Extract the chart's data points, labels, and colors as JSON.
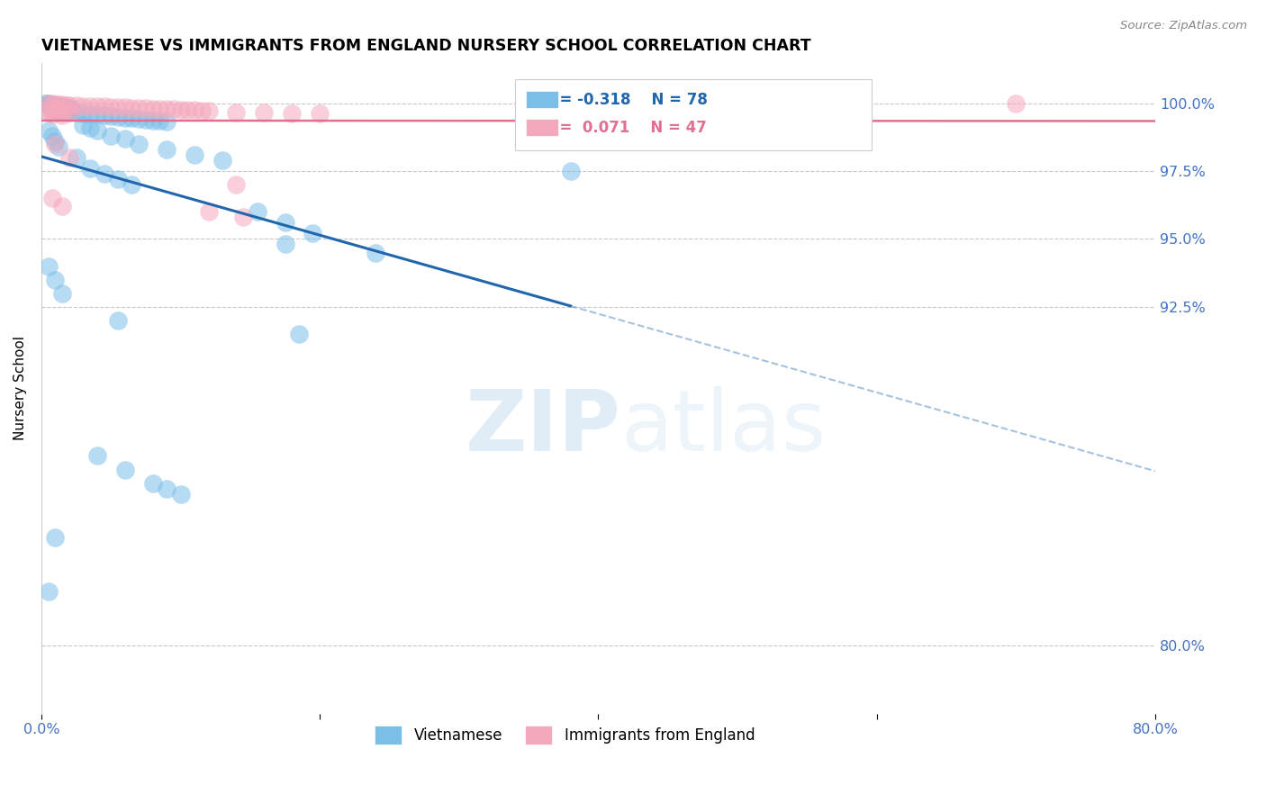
{
  "title": "VIETNAMESE VS IMMIGRANTS FROM ENGLAND NURSERY SCHOOL CORRELATION CHART",
  "source": "Source: ZipAtlas.com",
  "ylabel": "Nursery School",
  "ytick_labels": [
    "80.0%",
    "92.5%",
    "95.0%",
    "97.5%",
    "100.0%"
  ],
  "ytick_values": [
    0.8,
    0.925,
    0.95,
    0.975,
    1.0
  ],
  "xlim": [
    0.0,
    0.8
  ],
  "ylim": [
    0.775,
    1.015
  ],
  "blue_color": "#7bbee8",
  "pink_color": "#f4a8bc",
  "blue_line_color": "#2166ac",
  "pink_line_color": "#e07090",
  "legend_r_blue": "-0.318",
  "legend_n_blue": "78",
  "legend_r_pink": "0.071",
  "legend_n_pink": "47",
  "watermark_zip": "ZIP",
  "watermark_atlas": "atlas",
  "blue_scatter_x": [
    0.003,
    0.004,
    0.005,
    0.006,
    0.007,
    0.008,
    0.009,
    0.01,
    0.011,
    0.012,
    0.013,
    0.014,
    0.015,
    0.016,
    0.017,
    0.018,
    0.019,
    0.02,
    0.021,
    0.022,
    0.008,
    0.01,
    0.012,
    0.015,
    0.018,
    0.02,
    0.025,
    0.03,
    0.035,
    0.04,
    0.045,
    0.05,
    0.055,
    0.06,
    0.065,
    0.07,
    0.075,
    0.08,
    0.085,
    0.09,
    0.03,
    0.035,
    0.04,
    0.05,
    0.06,
    0.07,
    0.09,
    0.11,
    0.13,
    0.025,
    0.035,
    0.045,
    0.055,
    0.065,
    0.155,
    0.175,
    0.195,
    0.005,
    0.008,
    0.01,
    0.012,
    0.38,
    0.005,
    0.01,
    0.015,
    0.175,
    0.24,
    0.055,
    0.185,
    0.04,
    0.06,
    0.08,
    0.09,
    0.1,
    0.005,
    0.01
  ],
  "blue_scatter_y": [
    1.0,
    0.9998,
    0.9997,
    0.9996,
    0.9995,
    0.9994,
    0.9993,
    0.9992,
    0.9991,
    0.999,
    0.9989,
    0.9988,
    0.9987,
    0.9986,
    0.9985,
    0.9984,
    0.9983,
    0.9982,
    0.9981,
    0.998,
    0.9978,
    0.9976,
    0.9974,
    0.9972,
    0.997,
    0.9968,
    0.9965,
    0.9962,
    0.996,
    0.9958,
    0.9955,
    0.9952,
    0.995,
    0.9948,
    0.9945,
    0.9942,
    0.994,
    0.9938,
    0.9935,
    0.9932,
    0.992,
    0.991,
    0.99,
    0.988,
    0.987,
    0.985,
    0.983,
    0.981,
    0.979,
    0.98,
    0.976,
    0.974,
    0.972,
    0.97,
    0.96,
    0.956,
    0.952,
    0.99,
    0.988,
    0.986,
    0.984,
    0.975,
    0.94,
    0.935,
    0.93,
    0.948,
    0.945,
    0.92,
    0.915,
    0.87,
    0.865,
    0.86,
    0.858,
    0.856,
    0.82,
    0.84
  ],
  "pink_scatter_x": [
    0.005,
    0.008,
    0.01,
    0.012,
    0.015,
    0.018,
    0.02,
    0.025,
    0.03,
    0.035,
    0.04,
    0.045,
    0.05,
    0.055,
    0.06,
    0.065,
    0.07,
    0.075,
    0.08,
    0.085,
    0.09,
    0.095,
    0.1,
    0.105,
    0.11,
    0.115,
    0.12,
    0.003,
    0.006,
    0.009,
    0.012,
    0.015,
    0.02,
    0.14,
    0.16,
    0.18,
    0.2,
    0.008,
    0.015,
    0.14,
    0.01,
    0.7,
    0.02,
    0.008,
    0.015,
    0.12,
    0.145
  ],
  "pink_scatter_y": [
    1.0,
    0.9998,
    0.9997,
    0.9996,
    0.9995,
    0.9994,
    0.9993,
    0.9992,
    0.9991,
    0.999,
    0.9989,
    0.9988,
    0.9987,
    0.9986,
    0.9985,
    0.9984,
    0.9983,
    0.9982,
    0.9981,
    0.998,
    0.9979,
    0.9978,
    0.9977,
    0.9976,
    0.9975,
    0.9974,
    0.9973,
    0.9972,
    0.9971,
    0.997,
    0.9969,
    0.9968,
    0.9967,
    0.9966,
    0.9965,
    0.9964,
    0.9963,
    0.996,
    0.9955,
    0.97,
    0.985,
    1.0,
    0.98,
    0.965,
    0.962,
    0.96,
    0.958
  ]
}
